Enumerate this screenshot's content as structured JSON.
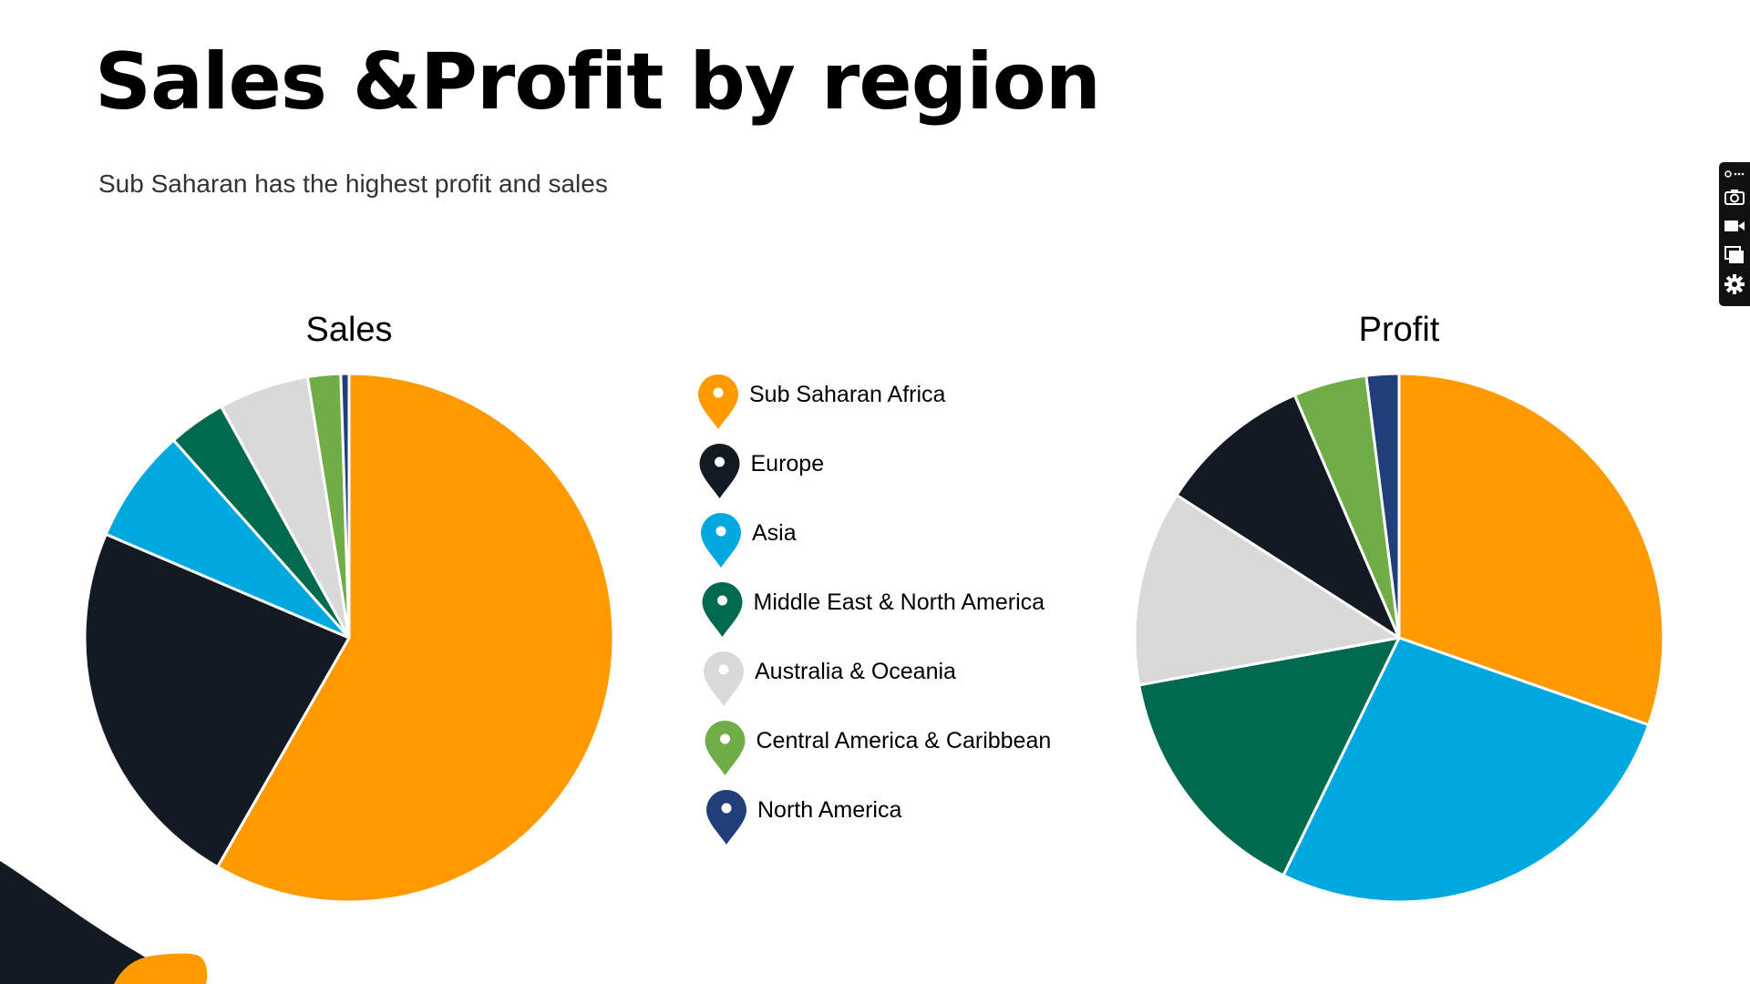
{
  "header": {
    "title": "Sales &Profit by region",
    "subtitle": "Sub Saharan has the highest profit and sales"
  },
  "chart_data": [
    {
      "type": "pie",
      "title": "Sales",
      "categories": [
        "Sub Saharan Africa",
        "Europe",
        "Asia",
        "Middle East & North America",
        "Australia & Oceania",
        "Central America & Caribbean",
        "North America"
      ],
      "values": [
        58.0,
        23.0,
        7.0,
        3.5,
        5.5,
        2.0,
        0.5
      ],
      "colors": [
        "#FF9900",
        "#141A23",
        "#00A8E0",
        "#006A4E",
        "#D9D9D9",
        "#70AD47",
        "#1F3E7A"
      ],
      "start_angle_deg": 0,
      "direction": "clockwise",
      "slice_order": [
        0,
        1,
        2,
        3,
        4,
        5,
        6
      ]
    },
    {
      "type": "pie",
      "title": "Profit",
      "categories": [
        "Sub Saharan Africa",
        "Asia",
        "Middle East & North America",
        "Australia & Oceania",
        "Europe",
        "Central America & Caribbean",
        "North America"
      ],
      "values": [
        30.5,
        27.0,
        15.0,
        12.0,
        9.5,
        4.5,
        2.0
      ],
      "colors": [
        "#FF9900",
        "#00A8E0",
        "#006A4E",
        "#D9D9D9",
        "#141A23",
        "#70AD47",
        "#1F3E7A"
      ],
      "start_angle_deg": 0,
      "direction": "clockwise"
    }
  ],
  "legend": {
    "items": [
      {
        "label": "Sub Saharan Africa",
        "color": "#FF9900"
      },
      {
        "label": "Europe",
        "color": "#141A23"
      },
      {
        "label": "Asia",
        "color": "#00A8E0"
      },
      {
        "label": "Middle East & North America",
        "color": "#006A4E"
      },
      {
        "label": "Australia & Oceania",
        "color": "#D9D9D9"
      },
      {
        "label": "Central America & Caribbean",
        "color": "#70AD47"
      },
      {
        "label": "North America",
        "color": "#1F3E7A"
      }
    ],
    "icon": "map-pin-icon"
  },
  "toolbar": {
    "items": [
      "pin-more-icon",
      "camera-icon",
      "video-icon",
      "window-icon",
      "gear-icon"
    ]
  },
  "colors": {
    "accent": "#FF9900",
    "dark": "#141A23"
  }
}
